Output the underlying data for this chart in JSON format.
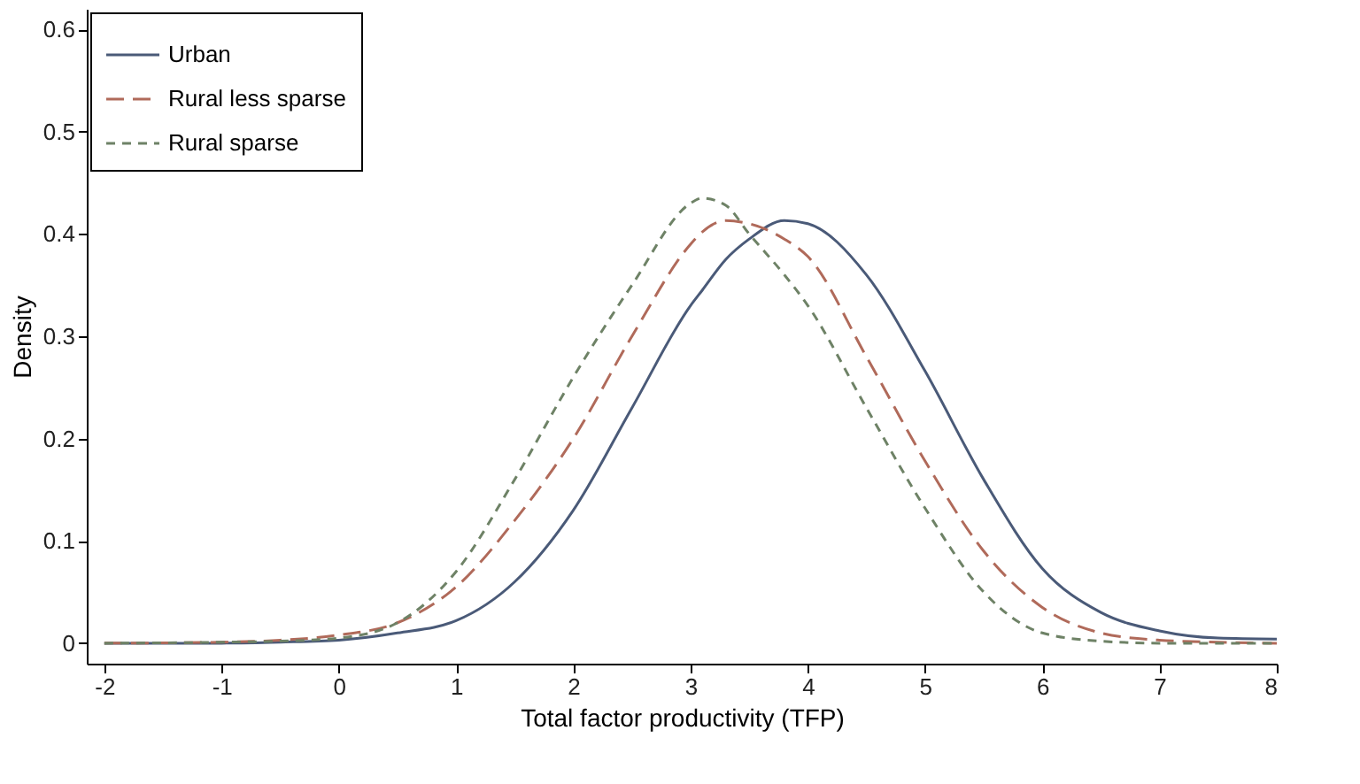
{
  "chart_data": {
    "type": "line",
    "xlabel": "Total factor productivity (TFP)",
    "ylabel": "Density",
    "x": [
      -2,
      -1,
      -0.5,
      0,
      0.5,
      1,
      1.5,
      2,
      2.5,
      3,
      3.1,
      3.3,
      3.5,
      3.8,
      4,
      4.5,
      5,
      5.5,
      6,
      6.5,
      7,
      7.5,
      8
    ],
    "series": [
      {
        "name": "Urban",
        "color": "#4a5a78",
        "line_style": "solid",
        "values": [
          0,
          0,
          0.001,
          0.003,
          0.01,
          0.022,
          0.06,
          0.13,
          0.23,
          0.33,
          0.345,
          0.375,
          0.395,
          0.413,
          0.41,
          0.36,
          0.266,
          0.16,
          0.073,
          0.03,
          0.012,
          0.005,
          0.004
        ]
      },
      {
        "name": "Rural less sparse",
        "color": "#b06a5a",
        "line_style": "dashed",
        "values": [
          0,
          0.001,
          0.003,
          0.008,
          0.02,
          0.055,
          0.12,
          0.2,
          0.3,
          0.39,
          0.402,
          0.413,
          0.41,
          0.395,
          0.378,
          0.28,
          0.178,
          0.09,
          0.035,
          0.01,
          0.003,
          0.001,
          0
        ]
      },
      {
        "name": "Rural sparse",
        "color": "#6e8266",
        "line_style": "dashed",
        "values": [
          0,
          0.001,
          0.002,
          0.005,
          0.02,
          0.07,
          0.16,
          0.26,
          0.35,
          0.43,
          0.435,
          0.428,
          0.4,
          0.36,
          0.33,
          0.23,
          0.132,
          0.05,
          0.01,
          0.002,
          0,
          0,
          0
        ]
      }
    ],
    "xlim": [
      -2.15,
      8
    ],
    "xticks": [
      -2,
      -1,
      0,
      1,
      2,
      3,
      4,
      5,
      6,
      7,
      8
    ],
    "ylim": [
      -0.02,
      0.62
    ],
    "yticks": [
      0,
      0.1,
      0.2,
      0.3,
      0.4,
      0.5,
      0.6
    ],
    "grid": false,
    "legend": "top left"
  }
}
